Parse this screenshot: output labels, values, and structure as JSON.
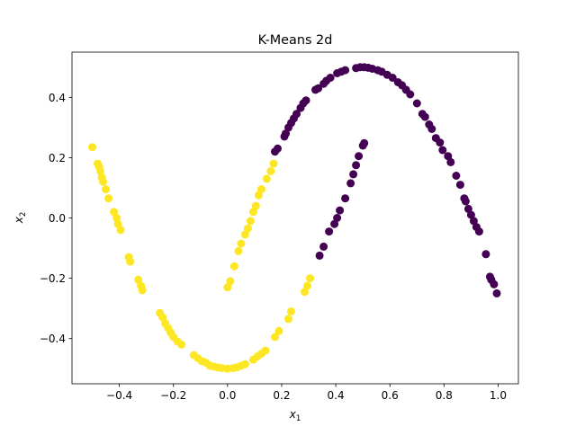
{
  "chart_data": {
    "type": "scatter",
    "title": "K-Means 2d",
    "xlabel": "x",
    "xlabel_sub": "1",
    "ylabel": "x",
    "ylabel_sub": "2",
    "xlim": [
      -0.575,
      1.075
    ],
    "ylim": [
      -0.55,
      0.55
    ],
    "xticks": [
      -0.4,
      -0.2,
      0.0,
      0.2,
      0.4,
      0.6,
      0.8,
      1.0
    ],
    "xtick_labels": [
      "−0.4",
      "−0.2",
      "0.0",
      "0.2",
      "0.4",
      "0.6",
      "0.8",
      "1.0"
    ],
    "yticks": [
      -0.4,
      -0.2,
      0.0,
      0.2,
      0.4
    ],
    "ytick_labels": [
      "−0.4",
      "−0.2",
      "0.0",
      "0.2",
      "0.4"
    ],
    "grid": false,
    "colors": {
      "cluster_0": "#440154",
      "cluster_1": "#fde725"
    },
    "series": [
      {
        "cluster": 1,
        "color": "#fde725",
        "points": [
          [
            -0.5,
            0.235
          ],
          [
            -0.48,
            0.18
          ],
          [
            -0.475,
            0.17
          ],
          [
            -0.47,
            0.155
          ],
          [
            -0.465,
            0.135
          ],
          [
            -0.46,
            0.12
          ],
          [
            -0.45,
            0.095
          ],
          [
            -0.44,
            0.065
          ],
          [
            -0.42,
            0.02
          ],
          [
            -0.41,
            0.0
          ],
          [
            -0.405,
            -0.02
          ],
          [
            -0.395,
            -0.04
          ],
          [
            -0.365,
            -0.13
          ],
          [
            -0.36,
            -0.145
          ],
          [
            -0.33,
            -0.205
          ],
          [
            -0.32,
            -0.225
          ],
          [
            -0.315,
            -0.24
          ],
          [
            -0.25,
            -0.315
          ],
          [
            -0.24,
            -0.33
          ],
          [
            -0.23,
            -0.35
          ],
          [
            -0.22,
            -0.365
          ],
          [
            -0.21,
            -0.38
          ],
          [
            -0.2,
            -0.395
          ],
          [
            -0.185,
            -0.41
          ],
          [
            -0.17,
            -0.42
          ],
          [
            -0.125,
            -0.455
          ],
          [
            -0.11,
            -0.465
          ],
          [
            -0.095,
            -0.475
          ],
          [
            -0.08,
            -0.48
          ],
          [
            -0.065,
            -0.49
          ],
          [
            -0.05,
            -0.493
          ],
          [
            -0.035,
            -0.496
          ],
          [
            -0.02,
            -0.498
          ],
          [
            0.0,
            -0.5
          ],
          [
            0.02,
            -0.498
          ],
          [
            0.035,
            -0.495
          ],
          [
            0.05,
            -0.49
          ],
          [
            0.065,
            -0.485
          ],
          [
            0.095,
            -0.47
          ],
          [
            0.11,
            -0.46
          ],
          [
            0.125,
            -0.45
          ],
          [
            0.14,
            -0.44
          ],
          [
            0.175,
            -0.395
          ],
          [
            0.19,
            -0.375
          ],
          [
            0.225,
            -0.335
          ],
          [
            0.235,
            -0.31
          ],
          [
            0.285,
            -0.245
          ],
          [
            0.295,
            -0.225
          ],
          [
            0.305,
            -0.2
          ],
          [
            0.0,
            -0.23
          ],
          [
            0.01,
            -0.21
          ],
          [
            0.025,
            -0.16
          ],
          [
            0.04,
            -0.11
          ],
          [
            0.05,
            -0.085
          ],
          [
            0.065,
            -0.055
          ],
          [
            0.075,
            -0.035
          ],
          [
            0.085,
            -0.01
          ],
          [
            0.095,
            0.02
          ],
          [
            0.105,
            0.04
          ],
          [
            0.115,
            0.075
          ],
          [
            0.125,
            0.095
          ],
          [
            0.145,
            0.13
          ],
          [
            0.16,
            0.155
          ],
          [
            0.17,
            0.18
          ]
        ]
      },
      {
        "cluster": 0,
        "color": "#440154",
        "points": [
          [
            0.175,
            0.22
          ],
          [
            0.185,
            0.23
          ],
          [
            0.21,
            0.27
          ],
          [
            0.215,
            0.28
          ],
          [
            0.225,
            0.3
          ],
          [
            0.235,
            0.315
          ],
          [
            0.245,
            0.33
          ],
          [
            0.255,
            0.345
          ],
          [
            0.27,
            0.365
          ],
          [
            0.28,
            0.38
          ],
          [
            0.29,
            0.39
          ],
          [
            0.325,
            0.425
          ],
          [
            0.335,
            0.43
          ],
          [
            0.355,
            0.445
          ],
          [
            0.365,
            0.455
          ],
          [
            0.38,
            0.465
          ],
          [
            0.405,
            0.48
          ],
          [
            0.42,
            0.485
          ],
          [
            0.435,
            0.49
          ],
          [
            0.475,
            0.497
          ],
          [
            0.49,
            0.5
          ],
          [
            0.505,
            0.5
          ],
          [
            0.52,
            0.498
          ],
          [
            0.535,
            0.495
          ],
          [
            0.555,
            0.49
          ],
          [
            0.57,
            0.485
          ],
          [
            0.59,
            0.475
          ],
          [
            0.61,
            0.465
          ],
          [
            0.63,
            0.45
          ],
          [
            0.645,
            0.44
          ],
          [
            0.66,
            0.425
          ],
          [
            0.675,
            0.41
          ],
          [
            0.7,
            0.38
          ],
          [
            0.72,
            0.345
          ],
          [
            0.73,
            0.335
          ],
          [
            0.745,
            0.31
          ],
          [
            0.755,
            0.295
          ],
          [
            0.77,
            0.265
          ],
          [
            0.785,
            0.25
          ],
          [
            0.795,
            0.225
          ],
          [
            0.815,
            0.205
          ],
          [
            0.825,
            0.185
          ],
          [
            0.845,
            0.14
          ],
          [
            0.86,
            0.11
          ],
          [
            0.875,
            0.065
          ],
          [
            0.88,
            0.055
          ],
          [
            0.89,
            0.03
          ],
          [
            0.9,
            0.01
          ],
          [
            0.91,
            -0.01
          ],
          [
            0.92,
            -0.03
          ],
          [
            0.93,
            -0.045
          ],
          [
            0.955,
            -0.12
          ],
          [
            0.97,
            -0.195
          ],
          [
            0.975,
            -0.205
          ],
          [
            0.985,
            -0.22
          ],
          [
            0.995,
            -0.25
          ],
          [
            0.34,
            -0.125
          ],
          [
            0.355,
            -0.095
          ],
          [
            0.375,
            -0.045
          ],
          [
            0.395,
            -0.02
          ],
          [
            0.405,
            0.0
          ],
          [
            0.415,
            0.025
          ],
          [
            0.435,
            0.065
          ],
          [
            0.455,
            0.115
          ],
          [
            0.465,
            0.145
          ],
          [
            0.475,
            0.175
          ],
          [
            0.485,
            0.205
          ],
          [
            0.5,
            0.24
          ],
          [
            0.505,
            0.248
          ]
        ]
      }
    ]
  }
}
